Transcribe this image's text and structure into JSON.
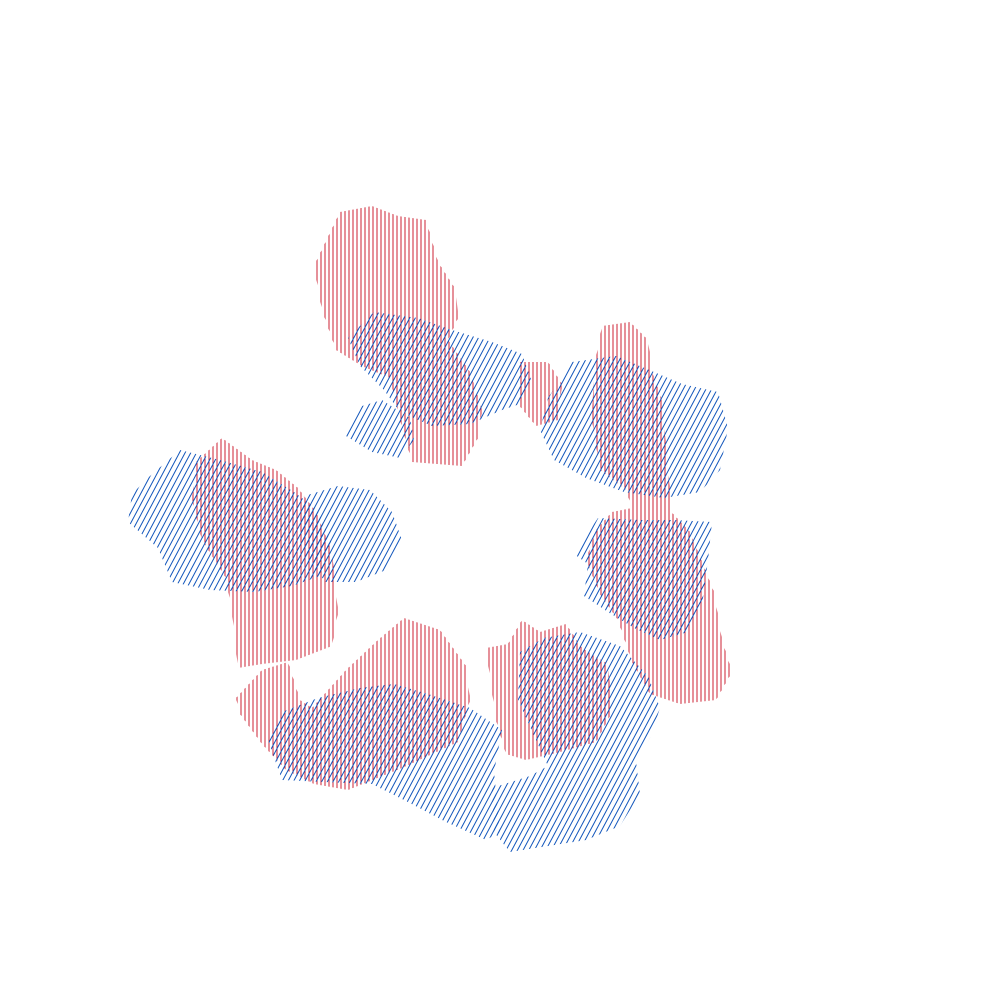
{
  "artwork": {
    "style": "hatched blob ring",
    "layers": [
      {
        "name": "red-vertical-hatch-layer",
        "hatch": "vertical",
        "color": "#cc2233"
      },
      {
        "name": "blue-diagonal-hatch-layer",
        "hatch": "diagonal",
        "color": "#1155bb"
      }
    ]
  }
}
